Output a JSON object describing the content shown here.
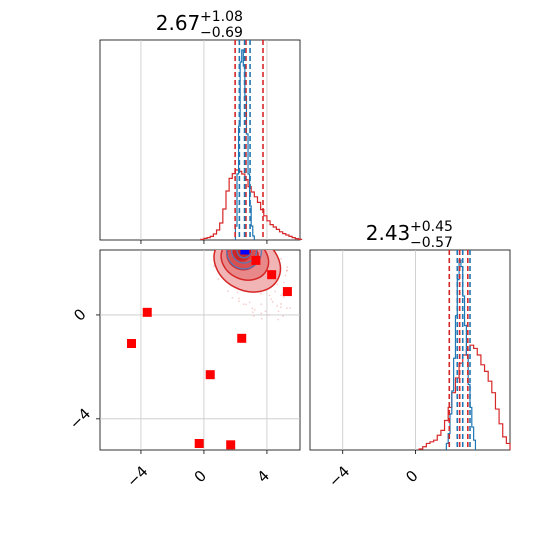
{
  "chart_data": [
    {
      "panel": "marginal-x",
      "type": "histogram",
      "title": {
        "base": "2.67",
        "sup": "+1.08",
        "sub": "−0.69"
      },
      "xlim": [
        -6.6,
        6.1
      ],
      "grid": true,
      "series": [
        {
          "color": "#d62728",
          "bins": [
            -0.2,
            0.0,
            0.2,
            0.4,
            0.6,
            0.8,
            1.0,
            1.2,
            1.4,
            1.6,
            1.8,
            2.0,
            2.2,
            2.4,
            2.6,
            2.8,
            3.0,
            3.2,
            3.4,
            3.6,
            3.8,
            4.0,
            4.2,
            4.4,
            4.6,
            4.8,
            5.0,
            5.2,
            5.4,
            5.6,
            5.8,
            6.0,
            6.2
          ],
          "heights": [
            0.3,
            0.8,
            1.2,
            1.8,
            3.0,
            5.0,
            8.5,
            15.5,
            24.5,
            30.8,
            33.2,
            35.0,
            34.3,
            33.0,
            30.2,
            26.7,
            24.0,
            21.6,
            18.8,
            15.2,
            12.1,
            9.6,
            7.7,
            6.5,
            5.3,
            4.1,
            3.2,
            2.5,
            1.8,
            1.2,
            0.7,
            0.3
          ]
        },
        {
          "color": "#1f77b4",
          "bins": [
            2.0,
            2.1,
            2.2,
            2.3,
            2.4,
            2.5,
            2.6,
            2.7,
            2.8,
            2.9,
            3.0,
            3.1,
            3.2
          ],
          "heights": [
            7,
            33,
            57,
            89,
            95,
            87,
            72,
            53,
            33,
            17,
            7,
            2
          ]
        }
      ],
      "quantile_lines": [
        {
          "color": "#d62728",
          "values": [
            1.98,
            2.67,
            3.75
          ]
        },
        {
          "color": "#1f77b4",
          "values": [
            2.25,
            2.58,
            2.93
          ]
        }
      ]
    },
    {
      "panel": "marginal-y",
      "type": "histogram",
      "title": {
        "base": "2.43",
        "sup": "+0.45",
        "sub": "−0.57"
      },
      "xlim": [
        -5.8,
        5.2
      ],
      "xticks": [
        -4,
        0
      ],
      "grid": true,
      "series": [
        {
          "color": "#d62728",
          "bins": [
            0.2,
            0.4,
            0.6,
            0.8,
            1.0,
            1.2,
            1.4,
            1.6,
            1.8,
            2.0,
            2.2,
            2.4,
            2.6,
            2.8,
            3.0,
            3.2,
            3.4,
            3.6,
            3.8,
            4.0,
            4.2,
            4.4,
            4.6,
            4.8,
            5.0,
            5.2
          ],
          "heights": [
            0.3,
            1.0,
            2.0,
            2.5,
            3.0,
            4.5,
            6.0,
            9.0,
            13.0,
            17.5,
            22.0,
            26.5,
            29.0,
            30.5,
            32.0,
            31.0,
            29.0,
            26.0,
            24.0,
            21.0,
            17.5,
            12.5,
            8.0,
            4.0,
            2.0
          ]
        },
        {
          "color": "#1f77b4",
          "bins": [
            1.7,
            1.8,
            1.9,
            2.0,
            2.1,
            2.2,
            2.3,
            2.4,
            2.5,
            2.6,
            2.7,
            2.8,
            2.9,
            3.0,
            3.1,
            3.2,
            3.3
          ],
          "heights": [
            2,
            5,
            11,
            18,
            28,
            41,
            52,
            58,
            56,
            47,
            38,
            29,
            20,
            13,
            7,
            3
          ]
        }
      ],
      "quantile_lines": [
        {
          "color": "#d62728",
          "values": [
            1.86,
            2.43,
            2.88
          ]
        },
        {
          "color": "#1f77b4",
          "values": [
            2.3,
            2.6,
            3.0
          ]
        }
      ]
    },
    {
      "panel": "joint",
      "type": "scatter",
      "xlim": [
        -6.6,
        6.1
      ],
      "ylim": [
        -5.2,
        2.5
      ],
      "xticks": [
        -4,
        0,
        4
      ],
      "yticks": [
        0,
        -4
      ],
      "grid": true,
      "contour_levels": [
        {
          "fill": "#f2b5b5",
          "stroke": "#d62728",
          "cx": 2.75,
          "cy": 2.0,
          "rx": 2.2,
          "ry": 1.05,
          "rot": 28
        },
        {
          "fill": "#e88888",
          "stroke": "#d62728",
          "cx": 2.6,
          "cy": 2.15,
          "rx": 1.55,
          "ry": 0.78,
          "rot": 25
        },
        {
          "fill": "#d94f4f",
          "stroke": "#d62728",
          "cx": 2.45,
          "cy": 2.3,
          "rx": 1.0,
          "ry": 0.55,
          "rot": 20
        },
        {
          "fill": "#c82727",
          "stroke": "#d62728",
          "cx": 2.4,
          "cy": 2.42,
          "rx": 0.55,
          "ry": 0.34,
          "rot": 10
        }
      ],
      "blue_contours": [
        {
          "cx": 2.55,
          "cy": 2.5,
          "rx": 0.45,
          "ry": 0.3
        },
        {
          "cx": 2.55,
          "cy": 2.5,
          "rx": 0.8,
          "ry": 0.5
        },
        {
          "cx": 2.55,
          "cy": 2.45,
          "rx": 1.1,
          "ry": 0.68
        }
      ],
      "red_markers": [
        {
          "x": -3.6,
          "y": 0.1
        },
        {
          "x": -4.6,
          "y": -1.1
        },
        {
          "x": 2.4,
          "y": -0.9
        },
        {
          "x": 0.4,
          "y": -2.3
        },
        {
          "x": -0.3,
          "y": -4.95
        },
        {
          "x": 1.7,
          "y": -5.0
        },
        {
          "x": 3.3,
          "y": 2.1
        },
        {
          "x": 4.3,
          "y": 1.55
        },
        {
          "x": 5.3,
          "y": 0.9
        },
        {
          "x": 2.7,
          "y": 2.55
        }
      ],
      "blue_marker": {
        "x": 2.6,
        "y": 2.5
      },
      "colors": {
        "red": "#ff0000",
        "blue": "#0000ff",
        "grid": "#c8c8c8"
      }
    }
  ]
}
